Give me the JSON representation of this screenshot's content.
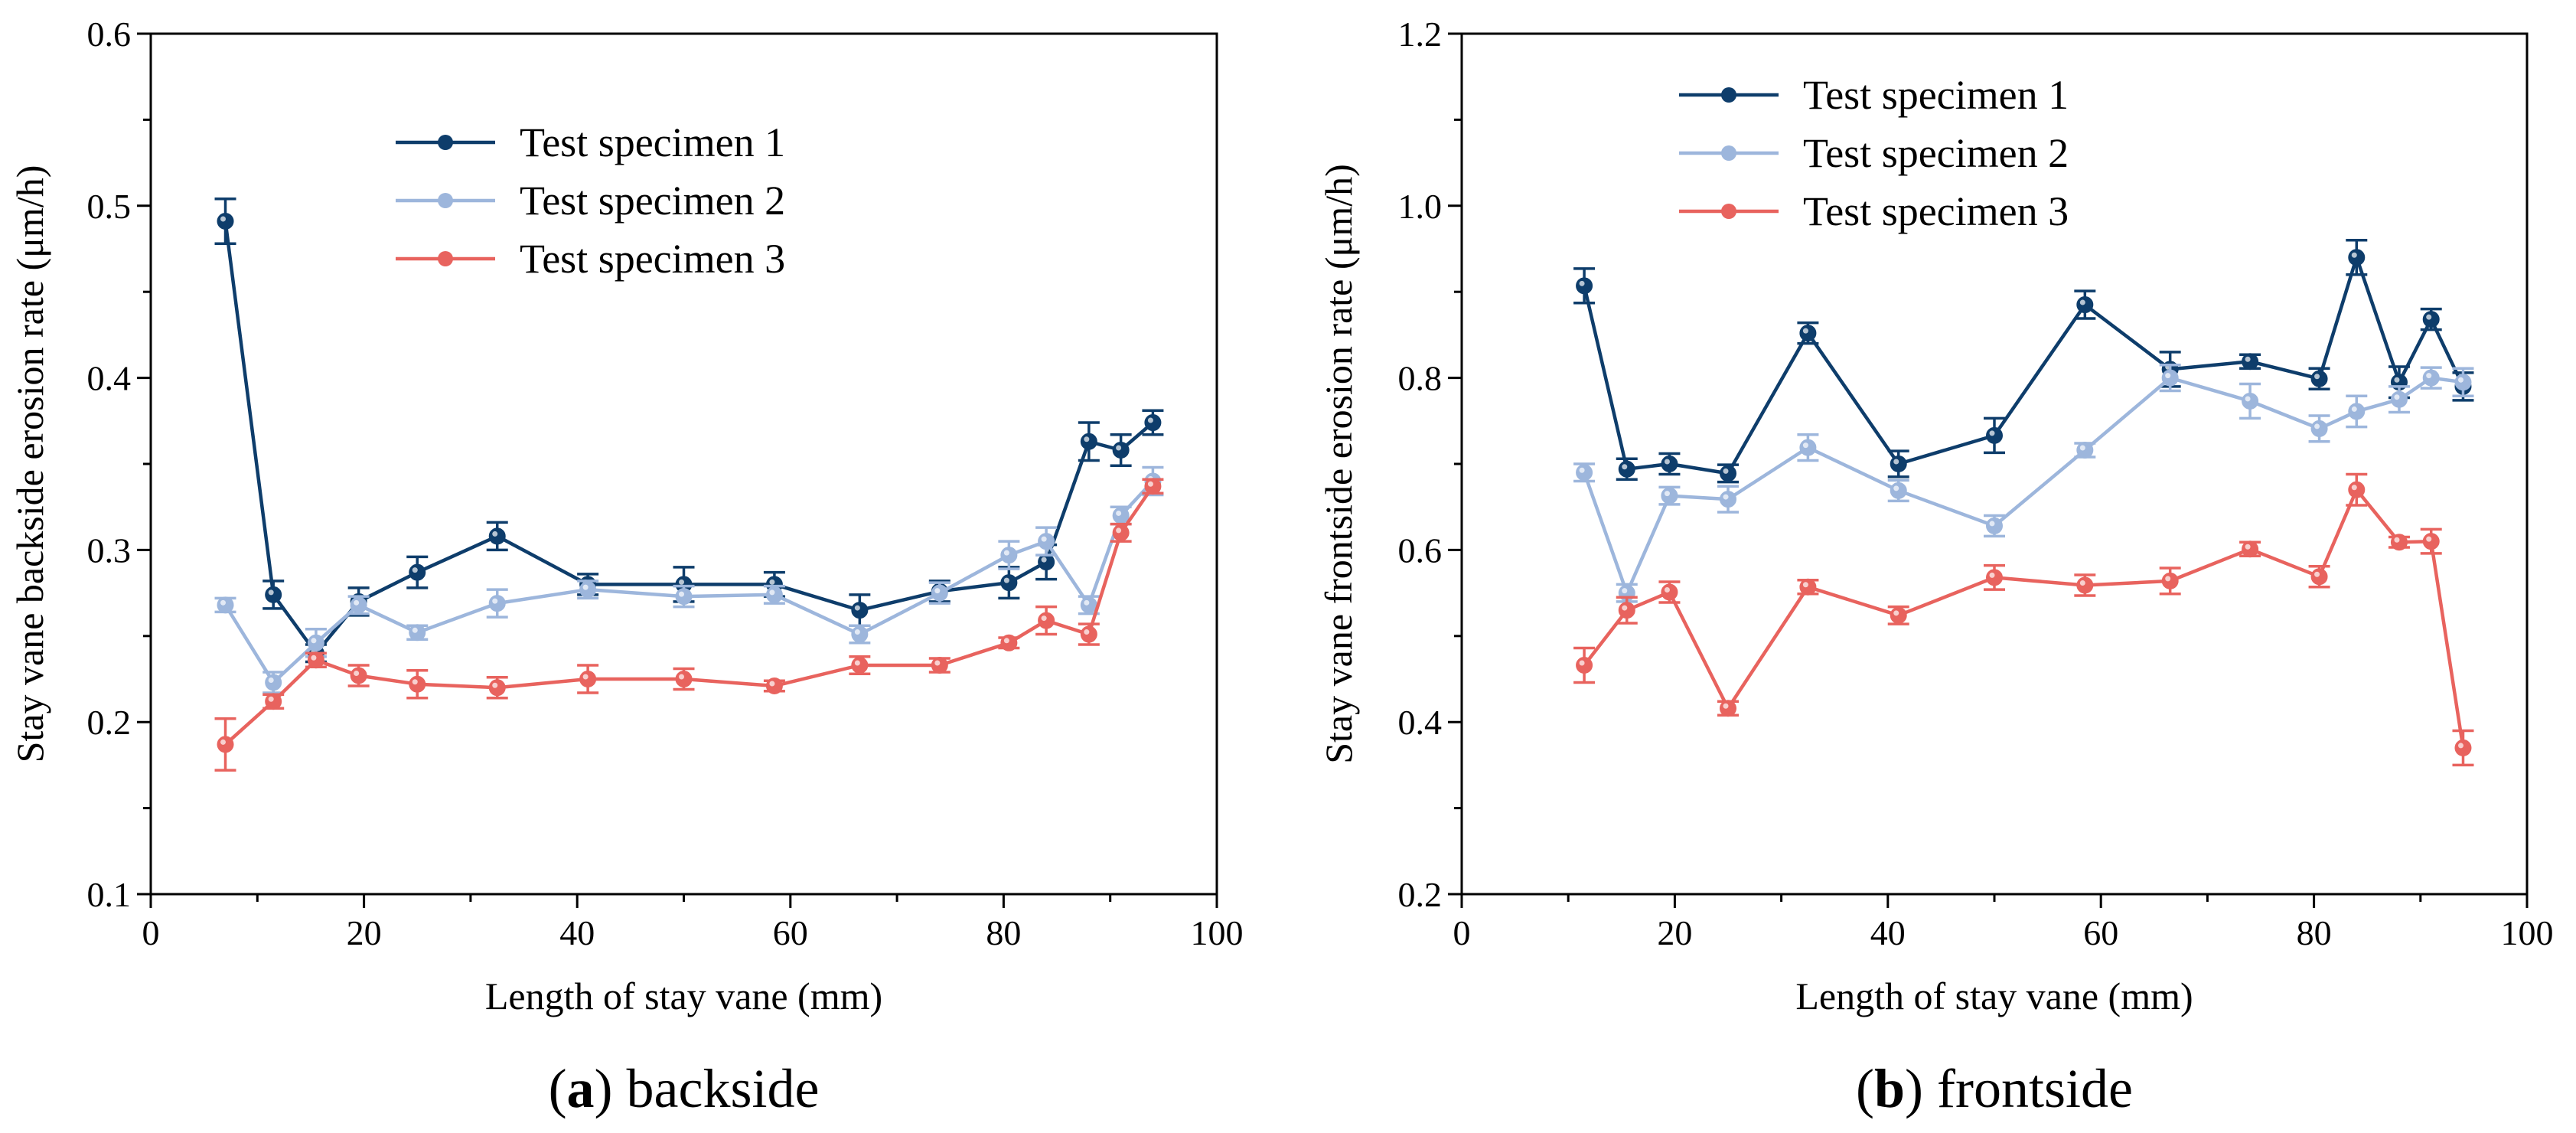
{
  "chart_data": [
    {
      "type": "line",
      "title": "",
      "xlabel": "Length of stay vane (mm)",
      "ylabel": "Stay vane backside erosion rate (μm/h)",
      "xlim": [
        0,
        100
      ],
      "ylim": [
        0.1,
        0.6
      ],
      "xticks": [
        "0",
        "20",
        "40",
        "60",
        "80",
        "100"
      ],
      "yticks": [
        "0.1",
        "0.2",
        "0.3",
        "0.4",
        "0.5",
        "0.6"
      ],
      "grid": false,
      "legend_position": "top-center",
      "caption": {
        "label": "a",
        "text": "backside"
      },
      "series": [
        {
          "name": "Test specimen 1",
          "color": "#0e3d6b",
          "x": [
            7,
            11.5,
            15.5,
            19.5,
            25,
            32.5,
            41,
            50,
            58.5,
            66.5,
            74,
            80.5,
            84,
            88,
            91,
            94
          ],
          "y": [
            0.491,
            0.274,
            0.24,
            0.27,
            0.287,
            0.308,
            0.28,
            0.28,
            0.28,
            0.265,
            0.276,
            0.281,
            0.293,
            0.363,
            0.358,
            0.374
          ],
          "err": [
            0.013,
            0.008,
            0.005,
            0.008,
            0.009,
            0.008,
            0.006,
            0.01,
            0.007,
            0.009,
            0.006,
            0.009,
            0.01,
            0.011,
            0.009,
            0.007
          ]
        },
        {
          "name": "Test specimen 2",
          "color": "#9db6dc",
          "x": [
            7,
            11.5,
            15.5,
            19.5,
            25,
            32.5,
            41,
            50,
            58.5,
            66.5,
            74,
            80.5,
            84,
            88,
            91,
            94
          ],
          "y": [
            0.268,
            0.223,
            0.246,
            0.268,
            0.252,
            0.269,
            0.277,
            0.273,
            0.274,
            0.251,
            0.275,
            0.297,
            0.305,
            0.268,
            0.32,
            0.34
          ],
          "err": [
            0.004,
            0.006,
            0.008,
            0.005,
            0.004,
            0.008,
            0.005,
            0.006,
            0.005,
            0.005,
            0.006,
            0.008,
            0.008,
            0.005,
            0.005,
            0.008
          ]
        },
        {
          "name": "Test specimen 3",
          "color": "#e8635e",
          "x": [
            7,
            11.5,
            15.5,
            19.5,
            25,
            32.5,
            41,
            50,
            58.5,
            66.5,
            74,
            80.5,
            84,
            88,
            91,
            94
          ],
          "y": [
            0.187,
            0.212,
            0.236,
            0.227,
            0.222,
            0.22,
            0.225,
            0.225,
            0.221,
            0.233,
            0.233,
            0.246,
            0.259,
            0.251,
            0.31,
            0.337
          ],
          "err": [
            0.015,
            0.004,
            0.004,
            0.006,
            0.008,
            0.006,
            0.008,
            0.006,
            0.003,
            0.005,
            0.004,
            0.003,
            0.008,
            0.006,
            0.005,
            0.004
          ]
        }
      ]
    },
    {
      "type": "line",
      "title": "",
      "xlabel": "Length of stay vane (mm)",
      "ylabel": "Stay vane frontside erosion rate (μm/h)",
      "xlim": [
        0,
        100
      ],
      "ylim": [
        0.2,
        1.2
      ],
      "xticks": [
        "0",
        "20",
        "40",
        "60",
        "80",
        "100"
      ],
      "yticks": [
        "0.2",
        "0.4",
        "0.6",
        "0.8",
        "1.0",
        "1.2"
      ],
      "grid": false,
      "legend_position": "top-left",
      "caption": {
        "label": "b",
        "text": "frontside"
      },
      "series": [
        {
          "name": "Test specimen 1",
          "color": "#0e3d6b",
          "x": [
            11.5,
            15.5,
            19.5,
            25,
            32.5,
            41,
            50,
            58.5,
            66.5,
            74,
            80.5,
            84,
            88,
            91,
            94
          ],
          "y": [
            0.907,
            0.694,
            0.7,
            0.689,
            0.852,
            0.7,
            0.733,
            0.885,
            0.81,
            0.819,
            0.799,
            0.94,
            0.795,
            0.868,
            0.79
          ],
          "err": [
            0.02,
            0.012,
            0.012,
            0.01,
            0.012,
            0.015,
            0.02,
            0.016,
            0.02,
            0.008,
            0.012,
            0.02,
            0.018,
            0.012,
            0.016
          ]
        },
        {
          "name": "Test specimen 2",
          "color": "#9db6dc",
          "x": [
            11.5,
            15.5,
            19.5,
            25,
            32.5,
            41,
            50,
            58.5,
            66.5,
            74,
            80.5,
            84,
            88,
            91,
            94
          ],
          "y": [
            0.69,
            0.55,
            0.663,
            0.659,
            0.719,
            0.669,
            0.628,
            0.716,
            0.8,
            0.773,
            0.741,
            0.761,
            0.775,
            0.8,
            0.795
          ],
          "err": [
            0.01,
            0.01,
            0.01,
            0.015,
            0.015,
            0.012,
            0.012,
            0.008,
            0.015,
            0.02,
            0.015,
            0.018,
            0.015,
            0.012,
            0.016
          ]
        },
        {
          "name": "Test specimen 3",
          "color": "#e8635e",
          "x": [
            11.5,
            15.5,
            19.5,
            25,
            32.5,
            41,
            50,
            58.5,
            66.5,
            74,
            80.5,
            84,
            88,
            91,
            94
          ],
          "y": [
            0.466,
            0.53,
            0.551,
            0.416,
            0.557,
            0.524,
            0.568,
            0.559,
            0.564,
            0.601,
            0.569,
            0.67,
            0.609,
            0.61,
            0.37
          ],
          "err": [
            0.02,
            0.015,
            0.012,
            0.008,
            0.008,
            0.01,
            0.014,
            0.012,
            0.015,
            0.008,
            0.012,
            0.018,
            0.006,
            0.014,
            0.02
          ]
        }
      ]
    }
  ]
}
